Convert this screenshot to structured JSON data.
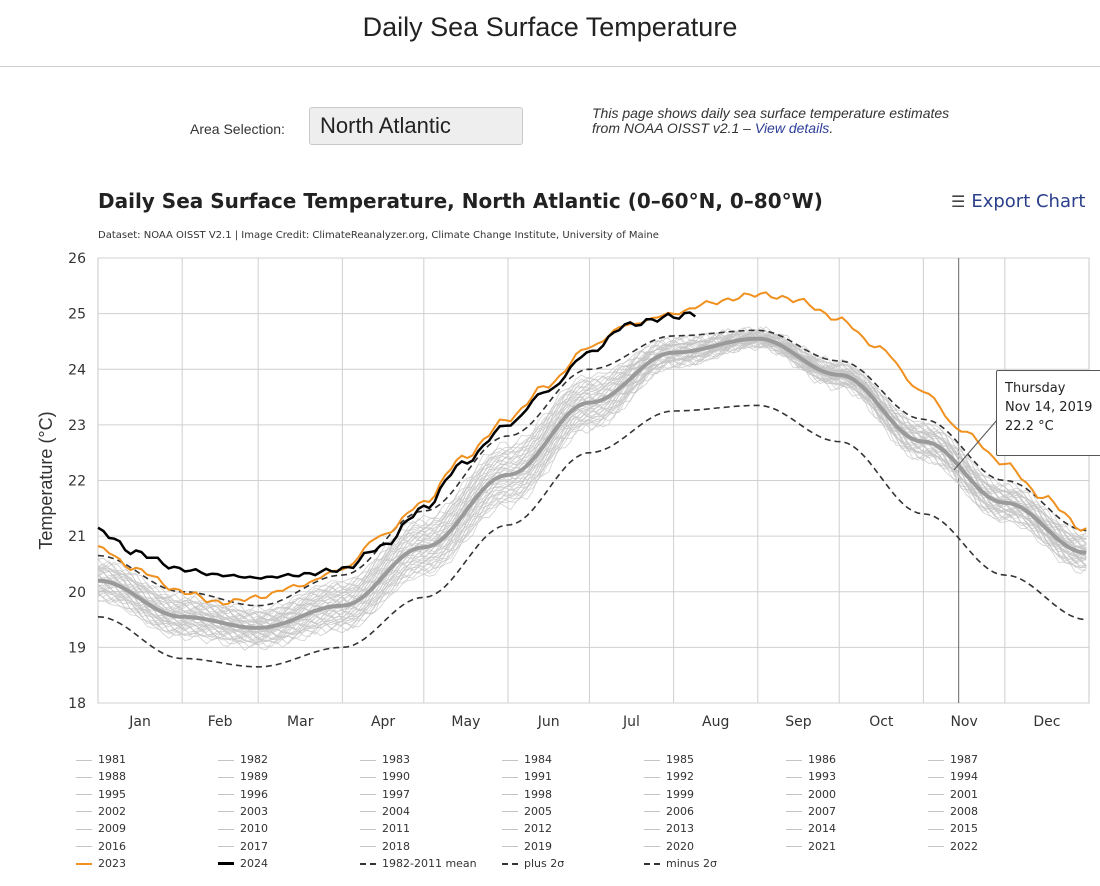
{
  "page": {
    "title": "Daily Sea Surface Temperature",
    "area_label": "Area Selection:",
    "area_value": "North Atlantic",
    "info_text": "This page shows daily sea surface temperature estimates from NOAA OISST v2.1 – ",
    "info_link": "View details",
    "info_end": "."
  },
  "export_label": "Export Chart",
  "credit": "Dataset: NOAA OISST V2.1 | Image Credit: ClimateReanalyzer.org, Climate Change Institute, University of Maine",
  "tooltip": {
    "line1": "Thursday",
    "line2": "Nov 14, 2019",
    "line3": "22.2 °C"
  },
  "colors": {
    "year_2023": "#f0901e",
    "year_2024": "#000000",
    "mean": "#9a9a9a",
    "other_years": "#c4c4c4",
    "sigma": "#333333"
  },
  "chart_data": {
    "type": "line",
    "title": "Daily Sea Surface Temperature, North Atlantic (0–60°N, 0–80°W)",
    "ylabel": "Temperature (°C)",
    "ylim": [
      18,
      26
    ],
    "y_ticks": [
      18,
      19,
      20,
      21,
      22,
      23,
      24,
      25,
      26
    ],
    "month_labels": [
      "Jan",
      "Feb",
      "Mar",
      "Apr",
      "May",
      "Jun",
      "Jul",
      "Aug",
      "Sep",
      "Oct",
      "Nov",
      "Dec"
    ],
    "grid": true,
    "highlighted_day": "Nov 14",
    "series_2023": {
      "name": "2023",
      "x": [
        "Jan 1",
        "Jan 15",
        "Feb 1",
        "Feb 15",
        "Mar 1",
        "Mar 15",
        "Apr 1",
        "Apr 15",
        "May 1",
        "May 15",
        "Jun 1",
        "Jun 15",
        "Jul 1",
        "Jul 15",
        "Aug 1",
        "Aug 15",
        "Sep 1",
        "Sep 15",
        "Oct 1",
        "Oct 15",
        "Nov 1",
        "Nov 15",
        "Dec 1",
        "Dec 15",
        "Dec 31"
      ],
      "y": [
        20.8,
        20.4,
        20.0,
        19.8,
        19.9,
        20.1,
        20.4,
        21.0,
        21.6,
        22.4,
        23.1,
        23.7,
        24.4,
        24.8,
        25.0,
        25.2,
        25.35,
        25.25,
        24.9,
        24.4,
        23.6,
        22.9,
        22.3,
        21.7,
        21.1
      ]
    },
    "series_2024": {
      "name": "2024",
      "x": [
        "Jan 1",
        "Jan 15",
        "Feb 1",
        "Feb 15",
        "Mar 1",
        "Mar 15",
        "Apr 1",
        "Apr 15",
        "May 1",
        "May 15",
        "Jun 1",
        "Jun 15",
        "Jul 1",
        "Jul 15",
        "Aug 1",
        "Aug 10"
      ],
      "y": [
        21.1,
        20.7,
        20.4,
        20.3,
        20.25,
        20.3,
        20.4,
        20.8,
        21.5,
        22.3,
        23.0,
        23.6,
        24.3,
        24.8,
        24.95,
        25.0
      ]
    },
    "mean_1982_2011": {
      "name": "1982-2011 mean",
      "x": [
        "Jan 1",
        "Feb 1",
        "Mar 1",
        "Apr 1",
        "May 1",
        "Jun 1",
        "Jul 1",
        "Aug 1",
        "Sep 1",
        "Oct 1",
        "Nov 1",
        "Dec 1",
        "Dec 31"
      ],
      "y": [
        20.2,
        19.55,
        19.35,
        19.75,
        20.8,
        22.1,
        23.4,
        24.3,
        24.55,
        23.9,
        22.7,
        21.6,
        20.7
      ]
    },
    "mean_plus_2sigma": {
      "name": "plus 2σ",
      "x": [
        "Jan 1",
        "Feb 1",
        "Mar 1",
        "Apr 1",
        "May 1",
        "Jun 1",
        "Jul 1",
        "Aug 1",
        "Sep 1",
        "Oct 1",
        "Nov 1",
        "Dec 1",
        "Dec 31"
      ],
      "y": [
        20.65,
        20.0,
        19.75,
        20.3,
        21.45,
        22.8,
        24.0,
        24.6,
        24.7,
        24.15,
        23.1,
        22.0,
        21.1
      ]
    },
    "mean_minus_2sigma": {
      "name": "minus 2σ",
      "x": [
        "Jan 1",
        "Feb 1",
        "Mar 1",
        "Apr 1",
        "May 1",
        "Jun 1",
        "Jul 1",
        "Aug 1",
        "Sep 1",
        "Oct 1",
        "Nov 1",
        "Dec 1",
        "Dec 31"
      ],
      "y": [
        19.55,
        18.8,
        18.65,
        19.0,
        19.9,
        21.2,
        22.5,
        23.25,
        23.35,
        22.7,
        21.4,
        20.3,
        19.5
      ]
    },
    "legend": [
      "1981",
      "1982",
      "1983",
      "1984",
      "1985",
      "1986",
      "1987",
      "1988",
      "1989",
      "1990",
      "1991",
      "1992",
      "1993",
      "1994",
      "1995",
      "1996",
      "1997",
      "1998",
      "1999",
      "2000",
      "2001",
      "2002",
      "2003",
      "2004",
      "2005",
      "2006",
      "2007",
      "2008",
      "2009",
      "2010",
      "2011",
      "2012",
      "2013",
      "2014",
      "2015",
      "2016",
      "2017",
      "2018",
      "2019",
      "2020",
      "2021",
      "2022",
      "2023",
      "2024",
      "1982-2011 mean",
      "plus 2σ",
      "minus 2σ"
    ]
  }
}
